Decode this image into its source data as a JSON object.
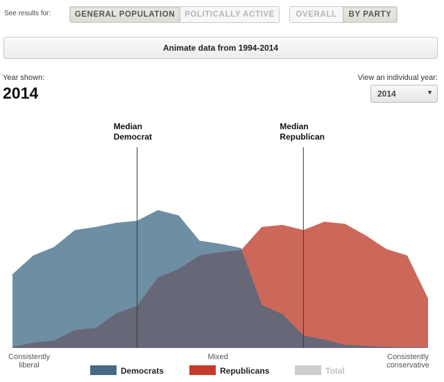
{
  "controls": {
    "see_results_label": "See results for:",
    "population_options": [
      {
        "label": "GENERAL POPULATION",
        "active": true
      },
      {
        "label": "POLITICALLY ACTIVE",
        "active": false
      }
    ],
    "view_options": [
      {
        "label": "OVERALL",
        "active": false
      },
      {
        "label": "BY PARTY",
        "active": true
      }
    ],
    "animate_label": "Animate data from 1994-2014",
    "year_shown_label": "Year shown:",
    "year_shown_value": "2014",
    "individual_year_label": "View an individual year:",
    "individual_year_value": "2014",
    "dropdown_icon": "caret-down-icon"
  },
  "chart_data": {
    "type": "area",
    "x_min": -10,
    "x_max": 10,
    "x": [
      -10,
      -9,
      -8,
      -7,
      -6,
      -5,
      -4,
      -3,
      -2,
      -1,
      0,
      1,
      2,
      3,
      4,
      5,
      6,
      7,
      8,
      9,
      10
    ],
    "series": [
      {
        "name": "Democrats",
        "color": "#6e8ea3",
        "legend_color": "#456a85",
        "values": [
          3.5,
          4.4,
          4.8,
          5.6,
          5.75,
          5.95,
          6.05,
          6.55,
          6.3,
          5.1,
          4.95,
          4.75,
          2.05,
          1.6,
          0.6,
          0.4,
          0.15,
          0.1,
          0.05,
          0.03,
          0.02
        ]
      },
      {
        "name": "Republicans",
        "color": "#cc685a",
        "legend_color": "#c43b2d",
        "values": [
          0.05,
          0.25,
          0.35,
          0.85,
          0.95,
          1.65,
          2.0,
          3.35,
          3.75,
          4.4,
          4.55,
          4.65,
          5.75,
          5.85,
          5.6,
          6.0,
          5.9,
          5.35,
          4.7,
          4.4,
          2.35
        ]
      }
    ],
    "overlap_color": "#666877",
    "total": {
      "name": "Total",
      "color": "#cccccc",
      "legend_text_color": "#c0c0c0"
    },
    "medians": [
      {
        "label_line1": "Median",
        "label_line2": "Democrat",
        "x": -4
      },
      {
        "label_line1": "Median",
        "label_line2": "Republican",
        "x": 4
      }
    ],
    "x_labels": [
      {
        "line1": "Consistently",
        "line2": "liberal",
        "x": -9.8
      },
      {
        "line1": "Mixed",
        "line2": "",
        "x": 0
      },
      {
        "line1": "Consistently",
        "line2": "conservative",
        "x": 9.8
      }
    ],
    "legend_position": "bottom-center"
  }
}
